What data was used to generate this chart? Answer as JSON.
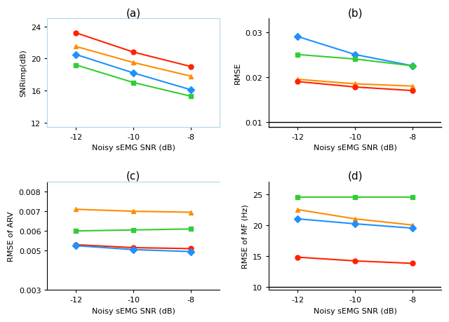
{
  "x": [
    -8,
    -10,
    -12
  ],
  "panel_a": {
    "title": "(a)",
    "ylabel": "SNRimp(dB)",
    "xlabel": "Noisy sEMG SNR (dB)",
    "series_order": [
      "red",
      "orange",
      "blue",
      "green"
    ],
    "series": {
      "blue": [
        16.1,
        18.2,
        20.5
      ],
      "red": [
        19.0,
        20.8,
        23.2
      ],
      "orange": [
        17.8,
        19.5,
        21.5
      ],
      "green": [
        15.3,
        17.0,
        19.2
      ]
    },
    "ylim": [
      11.5,
      25
    ],
    "yticks": [
      12,
      16,
      20,
      24
    ]
  },
  "panel_b": {
    "title": "(b)",
    "ylabel": "RMSE",
    "xlabel": "Noisy sEMG SNR (dB)",
    "series_order": [
      "blue",
      "green",
      "orange",
      "red"
    ],
    "series": {
      "blue": [
        0.0225,
        0.025,
        0.029
      ],
      "green": [
        0.0225,
        0.024,
        0.025
      ],
      "orange": [
        0.018,
        0.0185,
        0.0195
      ],
      "red": [
        0.017,
        0.0178,
        0.019
      ]
    },
    "ylim": [
      0.009,
      0.033
    ],
    "yticks": [
      0.01,
      0.02,
      0.03
    ]
  },
  "panel_c": {
    "title": "(c)",
    "ylabel": "RMSE of ARV",
    "xlabel": "Noisy sEMG SNR (dB)",
    "series_order": [
      "orange",
      "green",
      "red",
      "blue"
    ],
    "series": {
      "blue": [
        0.00495,
        0.00505,
        0.00525
      ],
      "red": [
        0.0051,
        0.00515,
        0.0053
      ],
      "orange": [
        0.00695,
        0.007,
        0.0071
      ],
      "green": [
        0.0061,
        0.00605,
        0.006
      ]
    },
    "ylim": [
      0.003,
      0.0085
    ],
    "yticks": [
      0.003,
      0.005,
      0.006,
      0.007,
      0.008
    ]
  },
  "panel_d": {
    "title": "(d)",
    "ylabel": "RMSE of MF (Hz)",
    "xlabel": "Noisy sEMG SNR (dB)",
    "series_order": [
      "green",
      "orange",
      "blue",
      "red"
    ],
    "series": {
      "blue": [
        19.5,
        20.2,
        21.0
      ],
      "orange": [
        20.0,
        21.0,
        22.5
      ],
      "green": [
        24.5,
        24.5,
        24.5
      ],
      "red": [
        13.8,
        14.2,
        14.8
      ]
    },
    "ylim": [
      9.5,
      27
    ],
    "yticks": [
      10,
      15,
      20,
      25
    ]
  },
  "colors": {
    "blue": "#1E90FF",
    "red": "#FF2200",
    "orange": "#FF8C00",
    "green": "#32CD32"
  },
  "markers": {
    "blue": "D",
    "red": "o",
    "orange": "^",
    "green": "s"
  },
  "xlim": [
    -7.0,
    -13.0
  ],
  "xticks": [
    -8,
    -10,
    -12
  ]
}
